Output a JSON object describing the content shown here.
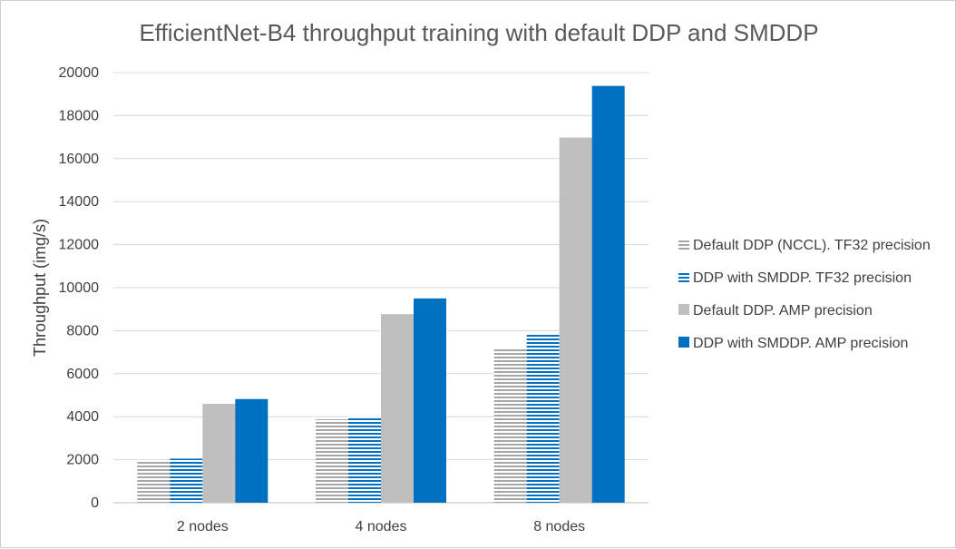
{
  "chart_data": {
    "type": "bar",
    "title": "EfficientNet-B4 throughput training with default DDP and SMDDP",
    "xlabel": "",
    "ylabel": "Throughput (img/s)",
    "ylim": [
      0,
      20000
    ],
    "yticks": [
      0,
      2000,
      4000,
      6000,
      8000,
      10000,
      12000,
      14000,
      16000,
      18000,
      20000
    ],
    "grid": true,
    "legend_position": "right",
    "categories": [
      "2 nodes",
      "4 nodes",
      "8 nodes"
    ],
    "series": [
      {
        "name": "Default DDP (NCCL). TF32 precision",
        "values": [
          1950,
          3880,
          7200
        ],
        "color": "#a6a6a6",
        "pattern": "horizontal-stripes"
      },
      {
        "name": "DDP with SMDDP. TF32 precision",
        "values": [
          2050,
          4000,
          7830
        ],
        "color": "#0070c0",
        "pattern": "horizontal-stripes"
      },
      {
        "name": "Default DDP. AMP precision",
        "values": [
          4600,
          8770,
          16980
        ],
        "color": "#bfbfbf",
        "pattern": "solid"
      },
      {
        "name": "DDP with SMDDP. AMP precision",
        "values": [
          4820,
          9500,
          19380
        ],
        "color": "#0070c0",
        "pattern": "solid"
      }
    ]
  }
}
